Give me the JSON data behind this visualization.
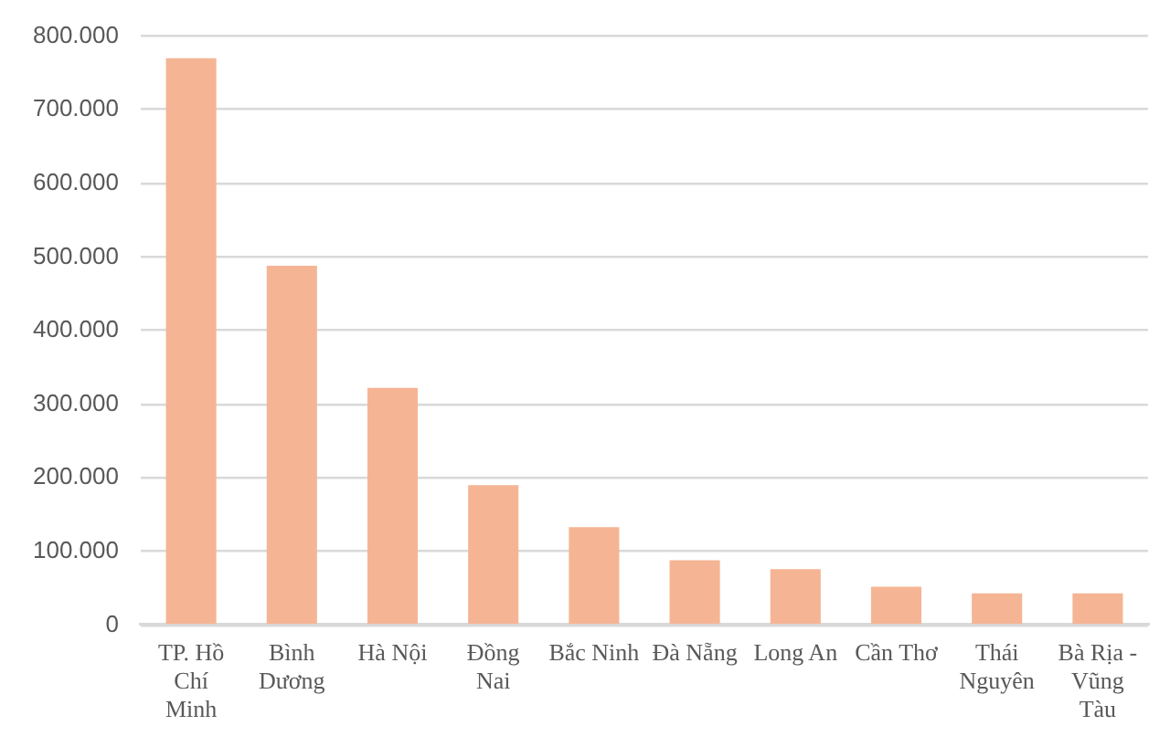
{
  "chart_data": {
    "type": "bar",
    "categories": [
      "TP. Hồ Chí Minh",
      "Bình Dương",
      "Hà Nội",
      "Đồng Nai",
      "Bắc Ninh",
      "Đà Nẵng",
      "Long An",
      "Cần Thơ",
      "Thái Nguyên",
      "Bà Rịa - Vũng Tàu"
    ],
    "values": [
      770000,
      488000,
      322000,
      190000,
      133000,
      88000,
      76000,
      52000,
      43000,
      43000
    ],
    "color": "#f5b594",
    "ylim": [
      0,
      800000
    ],
    "yticks": [
      0,
      {
        "value": 100000,
        "label": "100.000"
      },
      {
        "value": 200000,
        "label": "200.000"
      },
      {
        "value": 300000,
        "label": "300.000"
      },
      {
        "value": 400000,
        "label": "400.000"
      },
      {
        "value": 500000,
        "label": "500.000"
      },
      {
        "value": 600000,
        "label": "600.000"
      },
      {
        "value": 700000,
        "label": "700.000"
      },
      {
        "value": 800000,
        "label": "800.000"
      }
    ],
    "grid": "y"
  }
}
